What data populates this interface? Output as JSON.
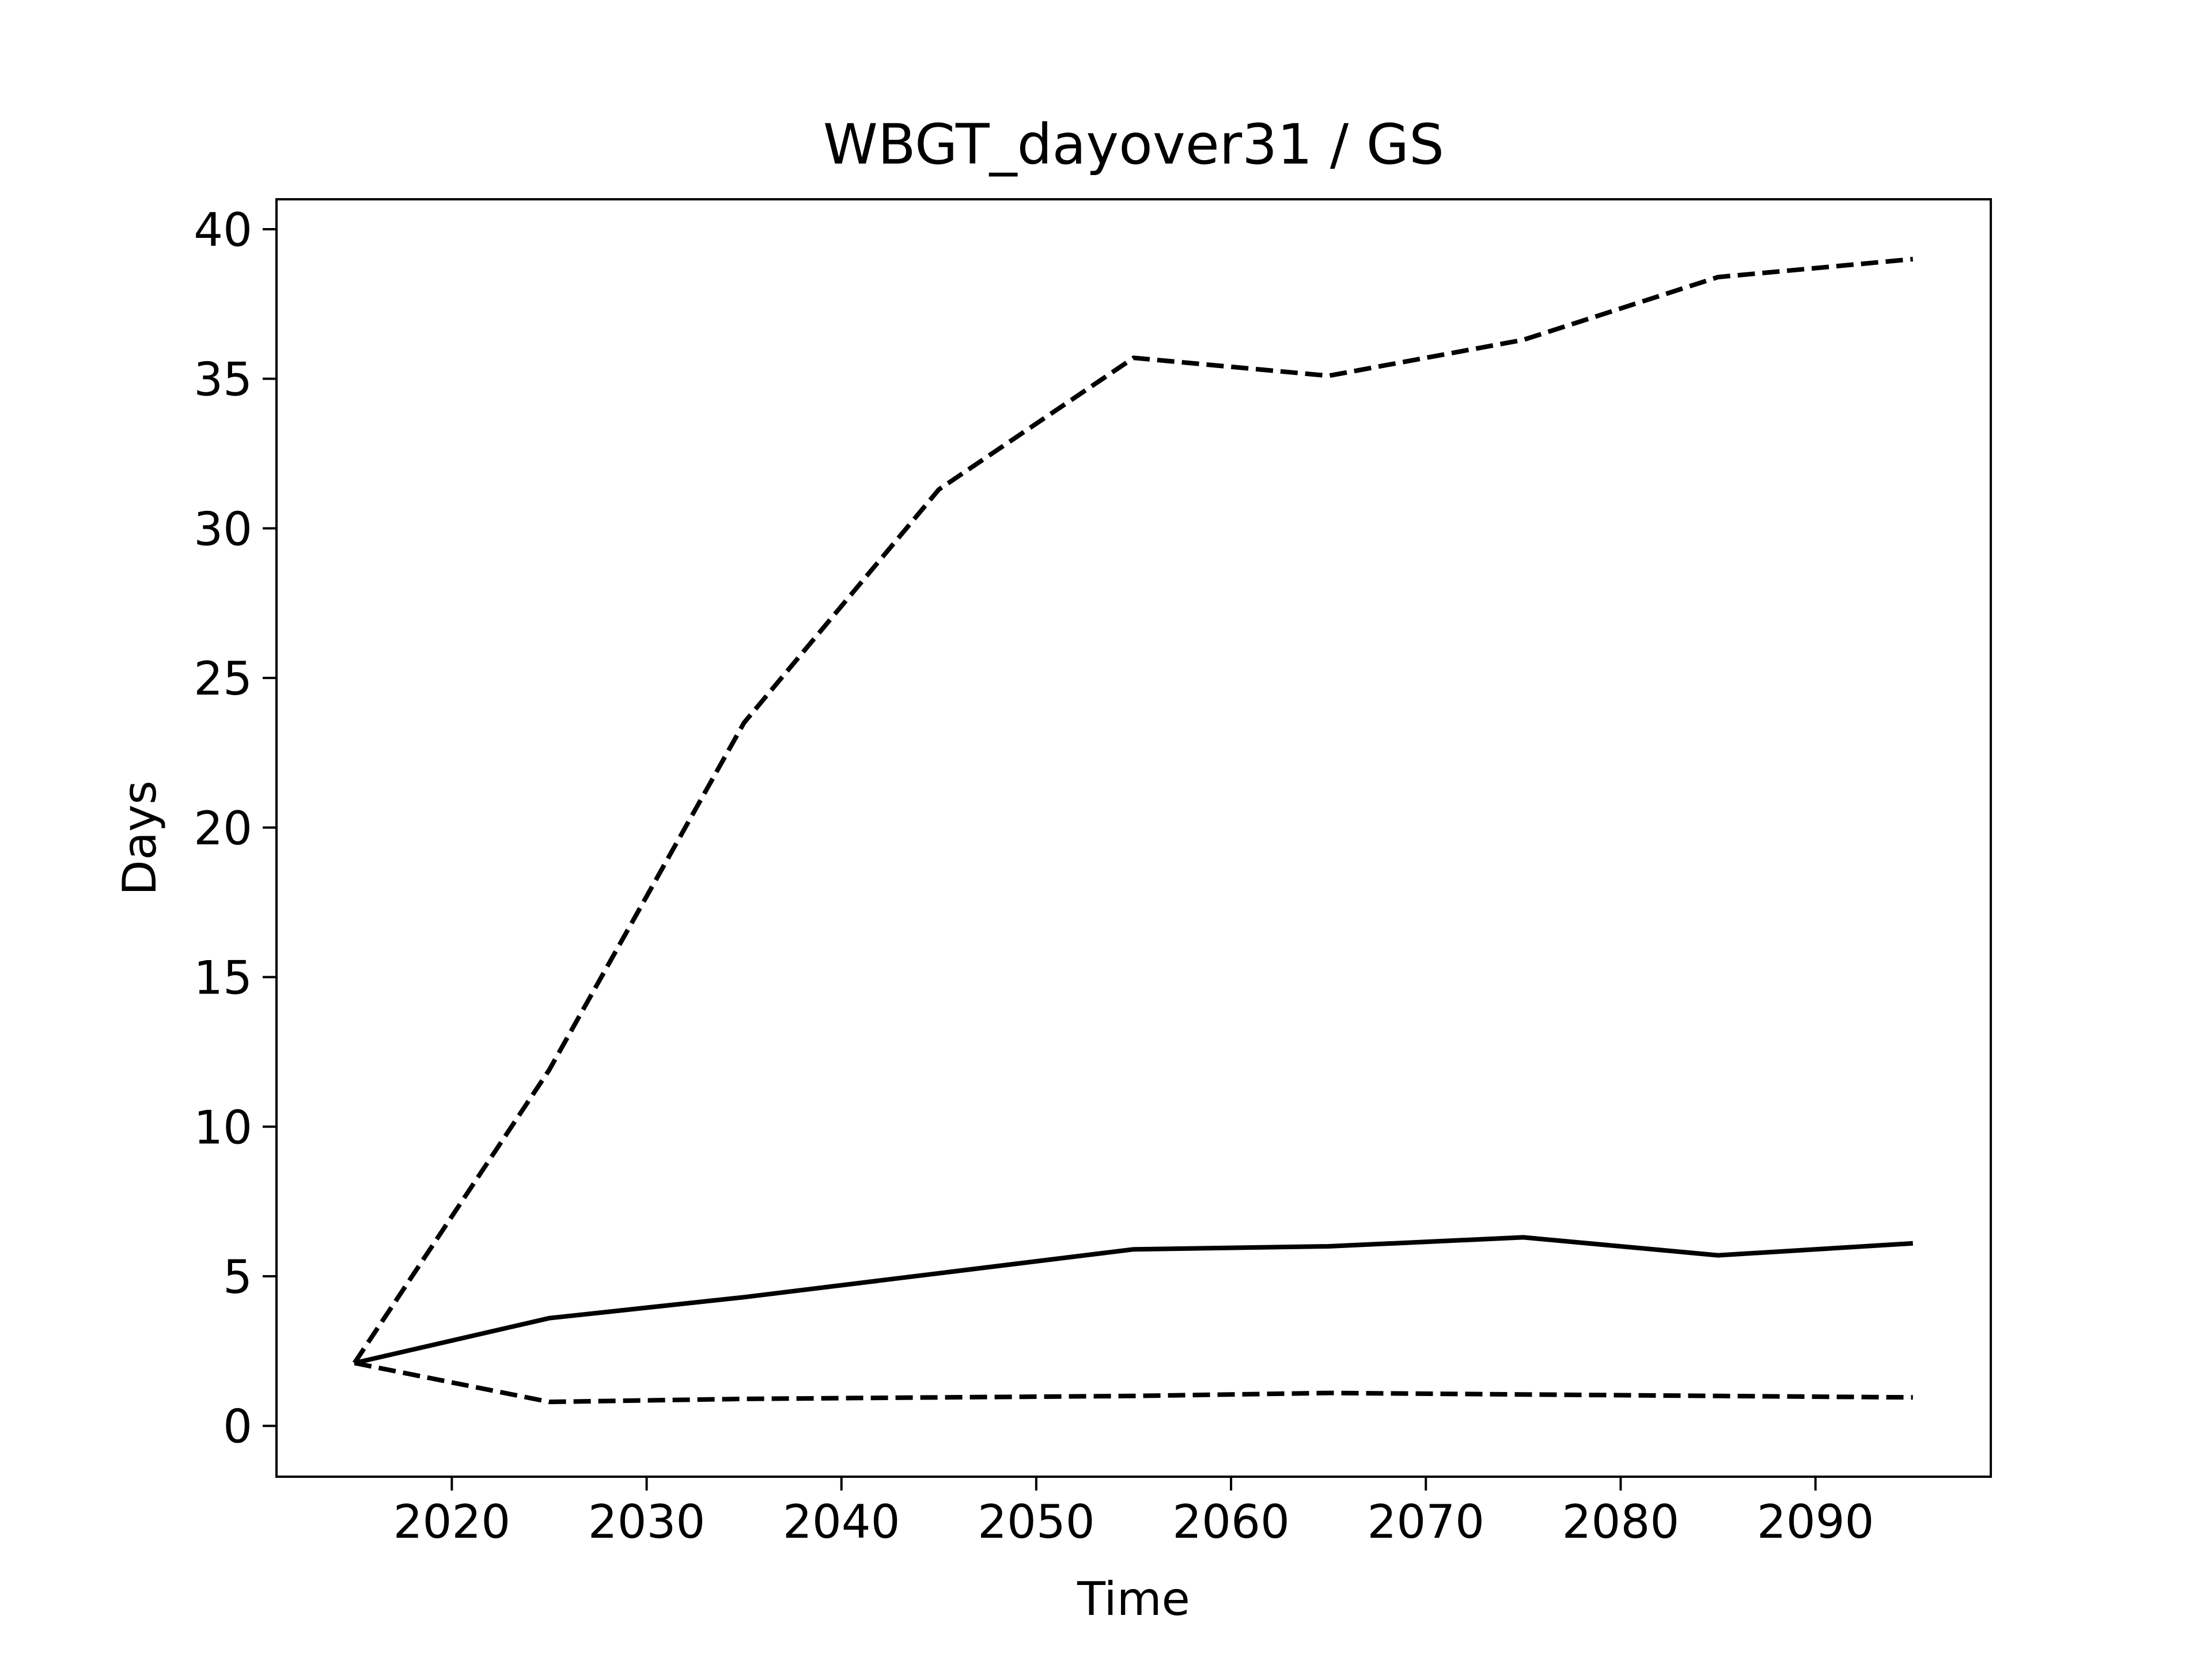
{
  "chart_data": {
    "type": "line",
    "title": "WBGT_dayover31 / GS",
    "xlabel": "Time",
    "ylabel": "Days",
    "xlim": [
      2011,
      2099
    ],
    "ylim": [
      -1.7,
      41
    ],
    "x_ticks": [
      2020,
      2030,
      2040,
      2050,
      2060,
      2070,
      2080,
      2090
    ],
    "y_ticks": [
      0,
      5,
      10,
      15,
      20,
      25,
      30,
      35,
      40
    ],
    "grid": false,
    "legend": "none",
    "x": [
      2015,
      2025,
      2035,
      2045,
      2055,
      2065,
      2075,
      2085,
      2095
    ],
    "series": [
      {
        "style": "dashed",
        "color": "#000000",
        "values": [
          2.1,
          11.9,
          23.5,
          31.3,
          35.7,
          35.1,
          36.3,
          38.4,
          39.0
        ]
      },
      {
        "style": "solid",
        "color": "#000000",
        "values": [
          2.1,
          3.6,
          4.3,
          5.1,
          5.9,
          6.0,
          6.3,
          5.7,
          6.1
        ]
      },
      {
        "style": "dashed",
        "color": "#000000",
        "values": [
          2.1,
          0.8,
          0.9,
          0.95,
          1.0,
          1.1,
          1.05,
          1.0,
          0.95
        ]
      }
    ]
  }
}
